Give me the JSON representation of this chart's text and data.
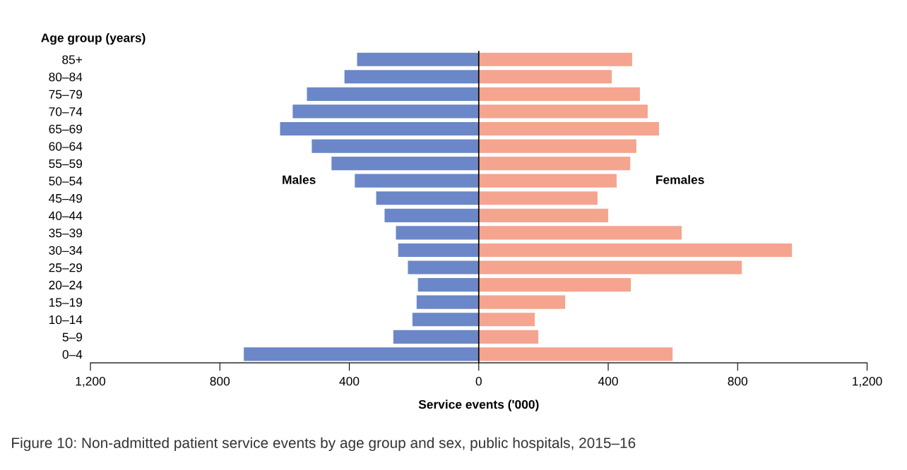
{
  "chart_data": {
    "type": "bar",
    "orientation": "horizontal",
    "stacked": true,
    "ylabel": "Age group (years)",
    "xlabel": "Service events ('000)",
    "categories": [
      "85+",
      "80–84",
      "75–79",
      "70–74",
      "65–69",
      "60–64",
      "55–59",
      "50–54",
      "45–49",
      "40–44",
      "35–39",
      "30–34",
      "25–29",
      "20–24",
      "15–19",
      "10–14",
      "5–9",
      "0–4"
    ],
    "series": [
      {
        "name": "Males",
        "color": "#6b87c7",
        "values": [
          -376,
          -415,
          -531,
          -575,
          -614,
          -516,
          -455,
          -383,
          -317,
          -291,
          -256,
          -249,
          -219,
          -188,
          -192,
          -205,
          -264,
          -726
        ]
      },
      {
        "name": "Females",
        "color": "#f5a48f",
        "values": [
          474,
          411,
          498,
          522,
          557,
          487,
          468,
          426,
          367,
          400,
          627,
          968,
          813,
          470,
          267,
          173,
          184,
          599
        ]
      }
    ],
    "xlim": [
      -1200,
      1200
    ],
    "xticks": [
      {
        "value": -1200,
        "label": "1,200"
      },
      {
        "value": -800,
        "label": "800"
      },
      {
        "value": -400,
        "label": "400"
      },
      0,
      400,
      800,
      {
        "value": 1200,
        "label": "1,200"
      }
    ],
    "ref_lines": [
      {
        "axis": "x",
        "value": 0,
        "color": "#000000"
      }
    ],
    "grid": false,
    "legend": false,
    "annotations": [
      "Figure 10: Non-admitted patient service events by age group and sex, public hospitals, 2015–16"
    ]
  }
}
